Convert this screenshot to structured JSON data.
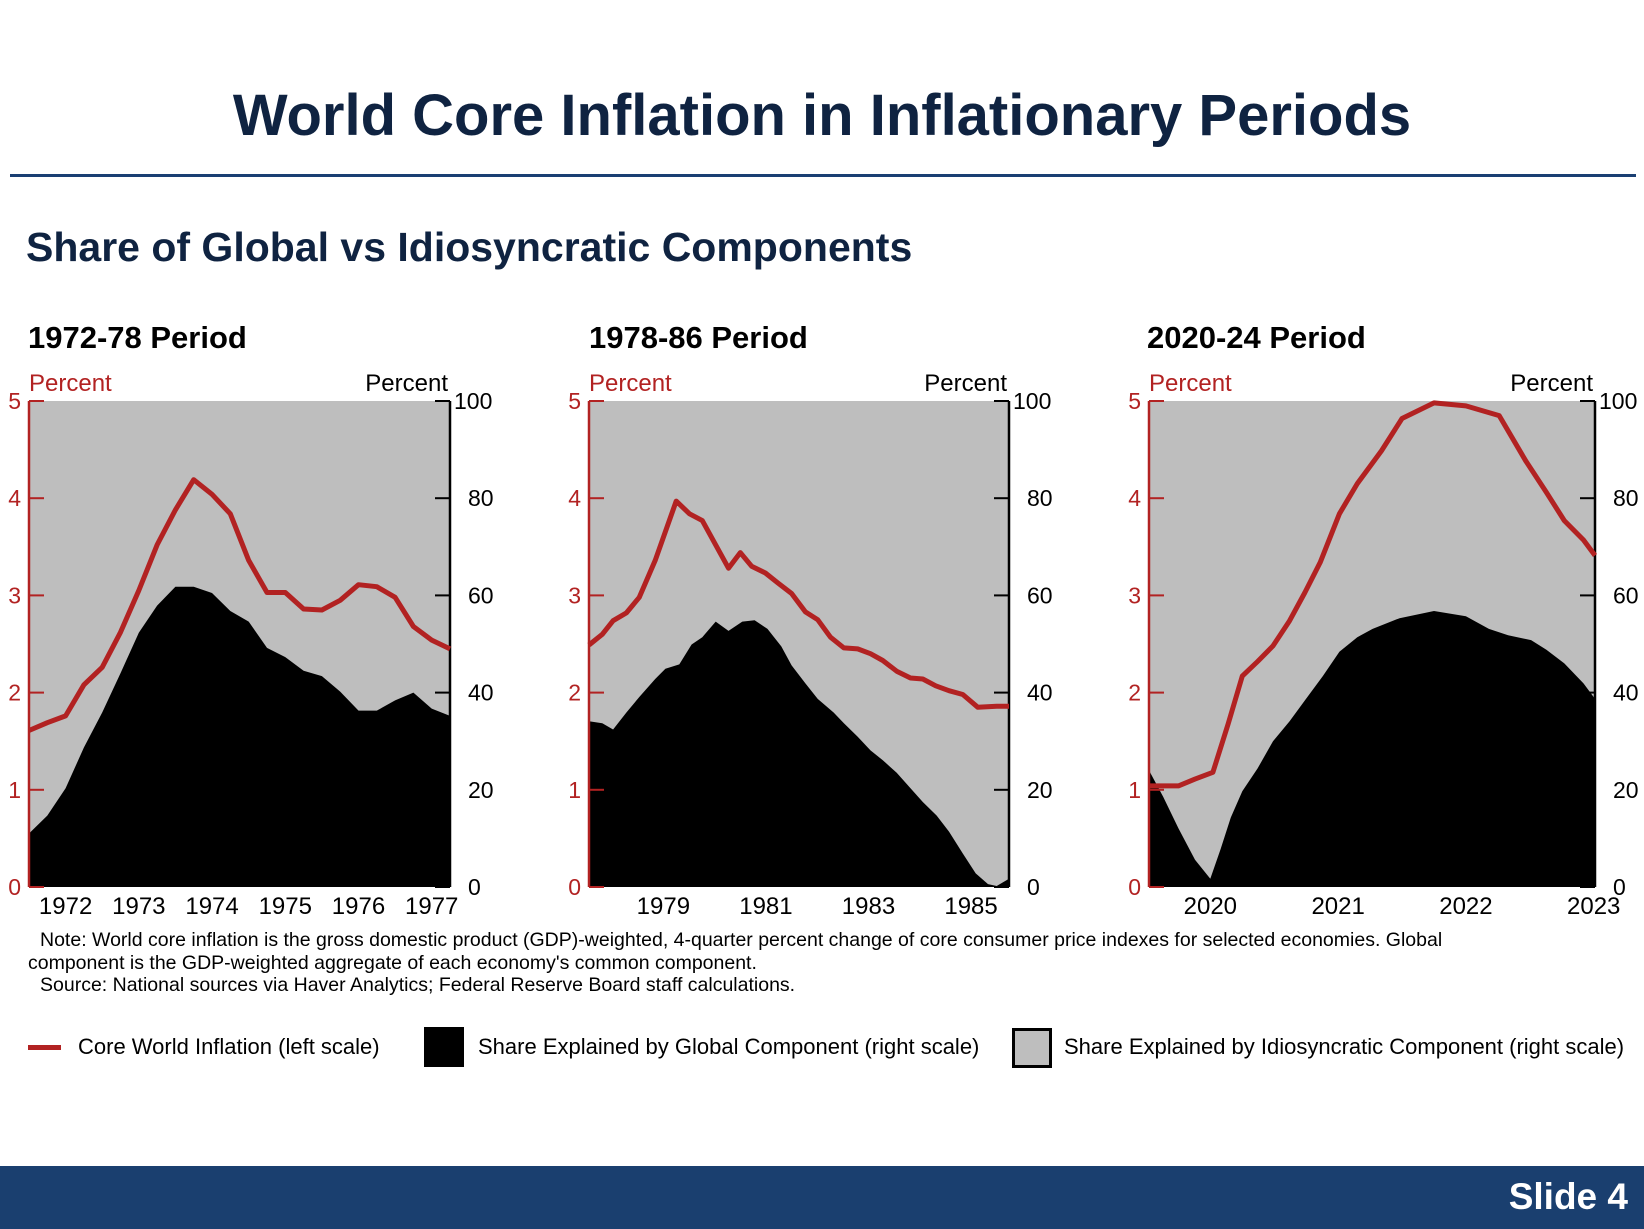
{
  "title": "World Core Inflation in Inflationary Periods",
  "subtitle": "Share of Global vs Idiosyncratic Components",
  "colors": {
    "inflation": "#b22222",
    "global": "#000000",
    "idiosyncratic": "#bebebe",
    "navy": "#1a3f6f"
  },
  "chart_data": [
    {
      "type": "area+line",
      "title": "1972-78 Period",
      "left_axis_label": "Percent",
      "right_axis_label": "Percent",
      "left_ylim": [
        0,
        5
      ],
      "left_ticks": [
        "0",
        "1",
        "2",
        "3",
        "4",
        "5"
      ],
      "right_ylim": [
        0,
        100
      ],
      "right_ticks": [
        "0",
        "20",
        "40",
        "60",
        "80",
        "100"
      ],
      "xlim": [
        1971.5,
        1977.25
      ],
      "x_ticks": [
        {
          "x": 1972,
          "label": "1972"
        },
        {
          "x": 1973,
          "label": "1973"
        },
        {
          "x": 1974,
          "label": "1974"
        },
        {
          "x": 1975,
          "label": "1975"
        },
        {
          "x": 1976,
          "label": "1976"
        },
        {
          "x": 1977,
          "label": "1977"
        }
      ],
      "inflation": {
        "x": [
          1971.5,
          1971.75,
          1972,
          1972.25,
          1972.5,
          1972.75,
          1973,
          1973.25,
          1973.5,
          1973.75,
          1974,
          1974.25,
          1974.5,
          1974.75,
          1975,
          1975.25,
          1975.5,
          1975.75,
          1976,
          1976.25,
          1976.5,
          1976.75,
          1977,
          1977.25
        ],
        "y": [
          1.61,
          1.69,
          1.76,
          2.08,
          2.26,
          2.62,
          3.05,
          3.52,
          3.88,
          4.19,
          4.04,
          3.84,
          3.36,
          3.03,
          3.03,
          2.86,
          2.85,
          2.95,
          3.11,
          3.09,
          2.98,
          2.68,
          2.54,
          2.45
        ]
      },
      "global_share": {
        "x": [
          1971.5,
          1971.75,
          1972,
          1972.25,
          1972.5,
          1972.75,
          1973,
          1973.25,
          1973.5,
          1973.75,
          1974,
          1974.25,
          1974.5,
          1974.75,
          1975,
          1975.25,
          1975.5,
          1975.75,
          1976,
          1976.25,
          1976.5,
          1976.75,
          1977,
          1977.25
        ],
        "y": [
          11,
          14.7,
          20.3,
          28.7,
          35.9,
          44,
          52.3,
          57.9,
          61.8,
          61.8,
          60.5,
          56.8,
          54.6,
          49.2,
          47.3,
          44.5,
          43.4,
          40.2,
          36.3,
          36.3,
          38.4,
          40,
          36.7,
          35.2
        ]
      }
    },
    {
      "type": "area+line",
      "title": "1978-86 Period",
      "left_axis_label": "Percent",
      "right_axis_label": "Percent",
      "left_ylim": [
        0,
        5
      ],
      "left_ticks": [
        "0",
        "1",
        "2",
        "3",
        "4",
        "5"
      ],
      "right_ylim": [
        0,
        100
      ],
      "right_ticks": [
        "0",
        "20",
        "40",
        "60",
        "80",
        "100"
      ],
      "xlim": [
        1977.55,
        1985.74
      ],
      "x_ticks": [
        {
          "x": 1979,
          "label": "1979"
        },
        {
          "x": 1981,
          "label": "1981"
        },
        {
          "x": 1983,
          "label": "1983"
        },
        {
          "x": 1985,
          "label": "1985"
        }
      ],
      "inflation": {
        "x": [
          1977.55,
          1977.81,
          1978.02,
          1978.28,
          1978.53,
          1978.84,
          1979.25,
          1979.51,
          1979.76,
          1980.02,
          1980.27,
          1980.5,
          1980.72,
          1980.99,
          1981.23,
          1981.5,
          1981.77,
          1982.01,
          1982.26,
          1982.52,
          1982.79,
          1983.04,
          1983.28,
          1983.55,
          1983.82,
          1984.06,
          1984.31,
          1984.57,
          1984.84,
          1985.13,
          1985.5,
          1985.74
        ],
        "y": [
          2.49,
          2.6,
          2.74,
          2.82,
          2.98,
          3.36,
          3.97,
          3.84,
          3.77,
          3.52,
          3.28,
          3.44,
          3.3,
          3.23,
          3.13,
          3.02,
          2.83,
          2.75,
          2.57,
          2.46,
          2.45,
          2.4,
          2.33,
          2.22,
          2.15,
          2.14,
          2.07,
          2.02,
          1.98,
          1.85,
          1.86,
          1.86
        ]
      },
      "global_share": {
        "x": [
          1977.55,
          1977.81,
          1978.02,
          1978.28,
          1978.53,
          1978.84,
          1979.04,
          1979.31,
          1979.55,
          1979.76,
          1980.02,
          1980.27,
          1980.54,
          1980.78,
          1981.03,
          1981.3,
          1981.5,
          1981.77,
          1982.01,
          1982.32,
          1982.52,
          1982.79,
          1983.04,
          1983.28,
          1983.55,
          1983.82,
          1984.06,
          1984.33,
          1984.57,
          1984.84,
          1985.09,
          1985.33,
          1985.5,
          1985.74
        ],
        "y": [
          34.1,
          33.7,
          32.4,
          35.9,
          39.1,
          42.8,
          44.9,
          45.8,
          49.9,
          51.4,
          54.6,
          52.7,
          54.6,
          54.9,
          53.1,
          49.5,
          45.6,
          41.9,
          38.7,
          35.9,
          33.7,
          30.9,
          28.1,
          26.1,
          23.5,
          20.3,
          17.5,
          14.7,
          11.4,
          6.9,
          2.8,
          0.6,
          0.2,
          1.7
        ]
      }
    },
    {
      "type": "area+line",
      "title": "2020-24 Period",
      "left_axis_label": "Percent",
      "right_axis_label": "Percent",
      "left_ylim": [
        0,
        5
      ],
      "left_ticks": [
        "0",
        "1",
        "2",
        "3",
        "4",
        "5"
      ],
      "right_ylim": [
        0,
        100
      ],
      "right_ticks": [
        "0",
        "20",
        "40",
        "60",
        "80",
        "100"
      ],
      "xlim": [
        2019.52,
        2023.01
      ],
      "x_ticks": [
        {
          "x": 2020,
          "label": "2020"
        },
        {
          "x": 2021,
          "label": "2021"
        },
        {
          "x": 2022,
          "label": "2022"
        },
        {
          "x": 2023,
          "label": "2023"
        }
      ],
      "inflation": {
        "x": [
          2019.52,
          2019.75,
          2019.88,
          2020.02,
          2020.14,
          2020.25,
          2020.37,
          2020.49,
          2020.62,
          2020.74,
          2020.86,
          2021.01,
          2021.15,
          2021.34,
          2021.5,
          2021.75,
          2022.0,
          2022.26,
          2022.47,
          2022.63,
          2022.77,
          2022.92,
          2023.01
        ],
        "y": [
          1.04,
          1.04,
          1.11,
          1.18,
          1.68,
          2.17,
          2.32,
          2.48,
          2.74,
          3.03,
          3.34,
          3.84,
          4.15,
          4.49,
          4.82,
          4.98,
          4.95,
          4.85,
          4.38,
          4.06,
          3.77,
          3.57,
          3.41
        ]
      },
      "global_share": {
        "x": [
          2019.52,
          2019.63,
          2019.75,
          2019.88,
          2020.0,
          2020.08,
          2020.16,
          2020.25,
          2020.37,
          2020.49,
          2020.62,
          2020.74,
          2020.88,
          2021.01,
          2021.15,
          2021.27,
          2021.48,
          2021.75,
          2022.0,
          2022.18,
          2022.33,
          2022.51,
          2022.63,
          2022.77,
          2022.92,
          2023.01
        ],
        "y": [
          24,
          18.6,
          12.1,
          5.6,
          1.7,
          7.8,
          14.3,
          19.7,
          24.4,
          30,
          34.1,
          38.4,
          43.4,
          48.4,
          51.4,
          53.1,
          55.3,
          56.8,
          55.7,
          53.1,
          51.8,
          50.8,
          48.8,
          46,
          41.9,
          38.7
        ]
      }
    }
  ],
  "notes": {
    "line1": "Note: World core inflation is the gross domestic product (GDP)-weighted, 4-quarter percent change of core consumer price indexes for selected economies. Global",
    "line2": "component is the GDP-weighted aggregate of each economy's common component.",
    "line3": "Source: National sources via Haver Analytics; Federal Reserve Board staff calculations."
  },
  "legend": [
    {
      "label": "Core World Inflation (left scale)",
      "symbol": "line"
    },
    {
      "label": "Share Explained by Global Component (right scale)",
      "symbol": "black-box"
    },
    {
      "label": "Share Explained by Idiosyncratic Component (right scale)",
      "symbol": "gray-box"
    }
  ],
  "footer": {
    "slide_label": "Slide 4"
  }
}
